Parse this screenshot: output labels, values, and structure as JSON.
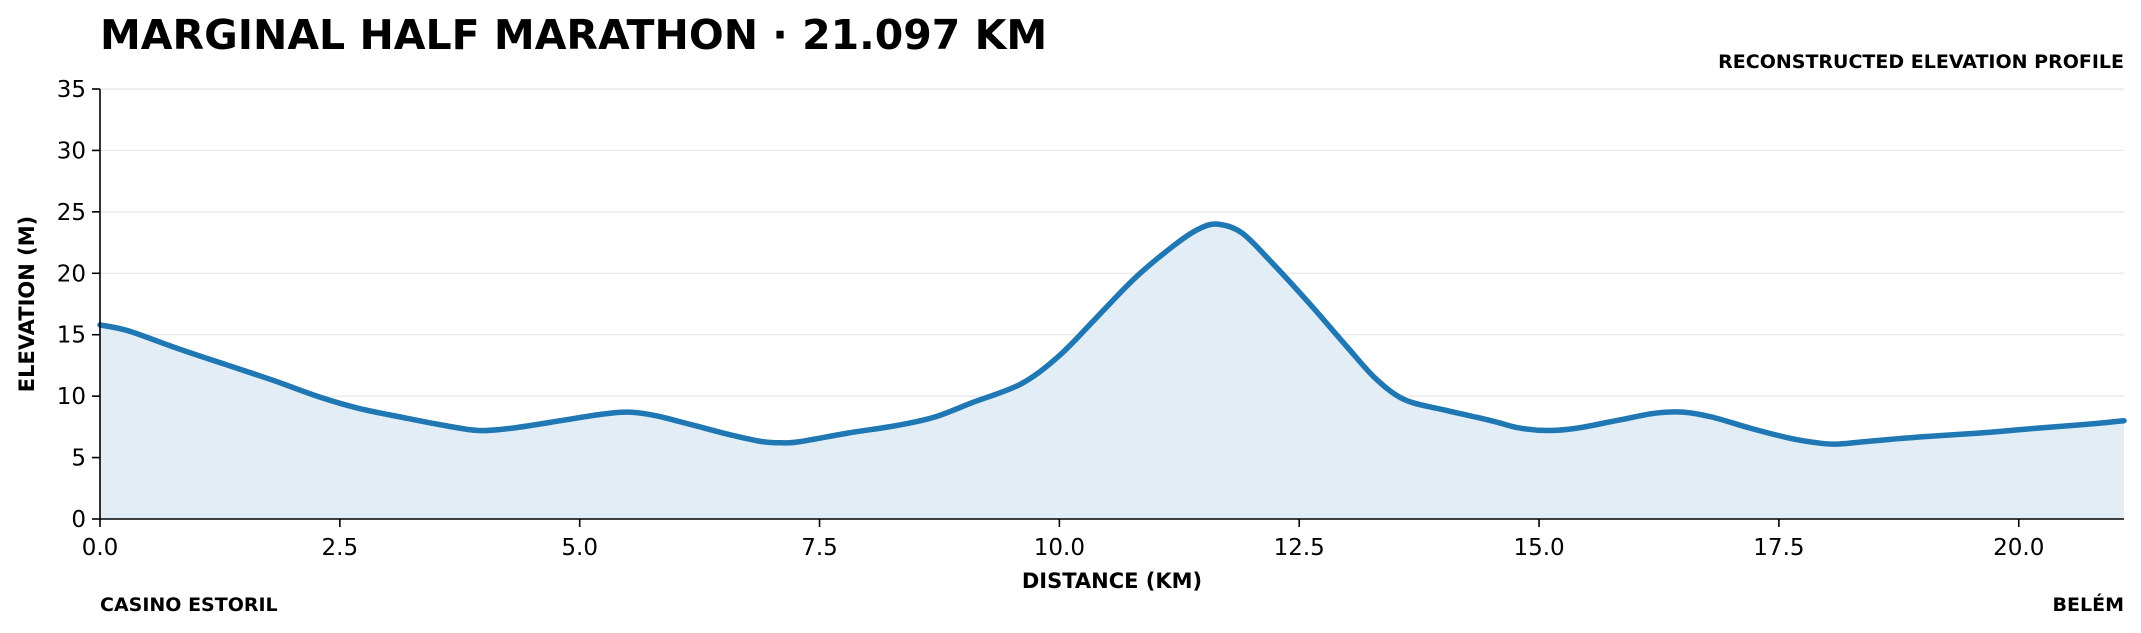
{
  "chart_data": {
    "type": "area",
    "title": "MARGINAL HALF MARATHON · 21.097 KM",
    "subtitle": "RECONSTRUCTED ELEVATION PROFILE",
    "xlabel": "DISTANCE (KM)",
    "ylabel": "ELEVATION (M)",
    "xlim": [
      0,
      21.097
    ],
    "ylim": [
      0,
      35
    ],
    "x_ticks": [
      "0.0",
      "2.5",
      "5.0",
      "7.5",
      "10.0",
      "12.5",
      "15.0",
      "17.5",
      "20.0"
    ],
    "y_ticks": [
      "0",
      "5",
      "10",
      "15",
      "20",
      "25",
      "30",
      "35"
    ],
    "grid": "horizontal",
    "start_label": "CASINO ESTORIL",
    "end_label": "BELÉM",
    "series": [
      {
        "color": "#1f77b4",
        "fill_color": "#e2edf5",
        "x": [
          0,
          0.3,
          0.8,
          1.3,
          1.8,
          2.3,
          2.7,
          3.2,
          3.6,
          3.95,
          4.3,
          4.8,
          5.2,
          5.5,
          5.8,
          6.2,
          6.6,
          6.9,
          7.1,
          7.3,
          7.8,
          8.3,
          8.7,
          9.1,
          9.6,
          10.0,
          10.4,
          10.8,
          11.2,
          11.45,
          11.65,
          11.9,
          12.2,
          12.6,
          13.0,
          13.3,
          13.6,
          14.0,
          14.5,
          14.8,
          15.1,
          15.4,
          15.8,
          16.2,
          16.5,
          16.8,
          17.2,
          17.6,
          17.9,
          18.1,
          18.4,
          19.0,
          19.6,
          20.2,
          20.7,
          21.097
        ],
        "y": [
          15.8,
          15.3,
          13.9,
          12.6,
          11.3,
          9.9,
          9.0,
          8.2,
          7.6,
          7.2,
          7.4,
          8.0,
          8.5,
          8.7,
          8.4,
          7.6,
          6.8,
          6.3,
          6.2,
          6.3,
          7.0,
          7.6,
          8.3,
          9.5,
          11.0,
          13.3,
          16.5,
          19.7,
          22.3,
          23.6,
          24.0,
          23.3,
          21.0,
          17.6,
          14.0,
          11.4,
          9.7,
          8.9,
          8.0,
          7.4,
          7.2,
          7.4,
          8.0,
          8.6,
          8.7,
          8.3,
          7.4,
          6.6,
          6.2,
          6.1,
          6.3,
          6.7,
          7.0,
          7.4,
          7.7,
          8.0
        ]
      }
    ]
  }
}
